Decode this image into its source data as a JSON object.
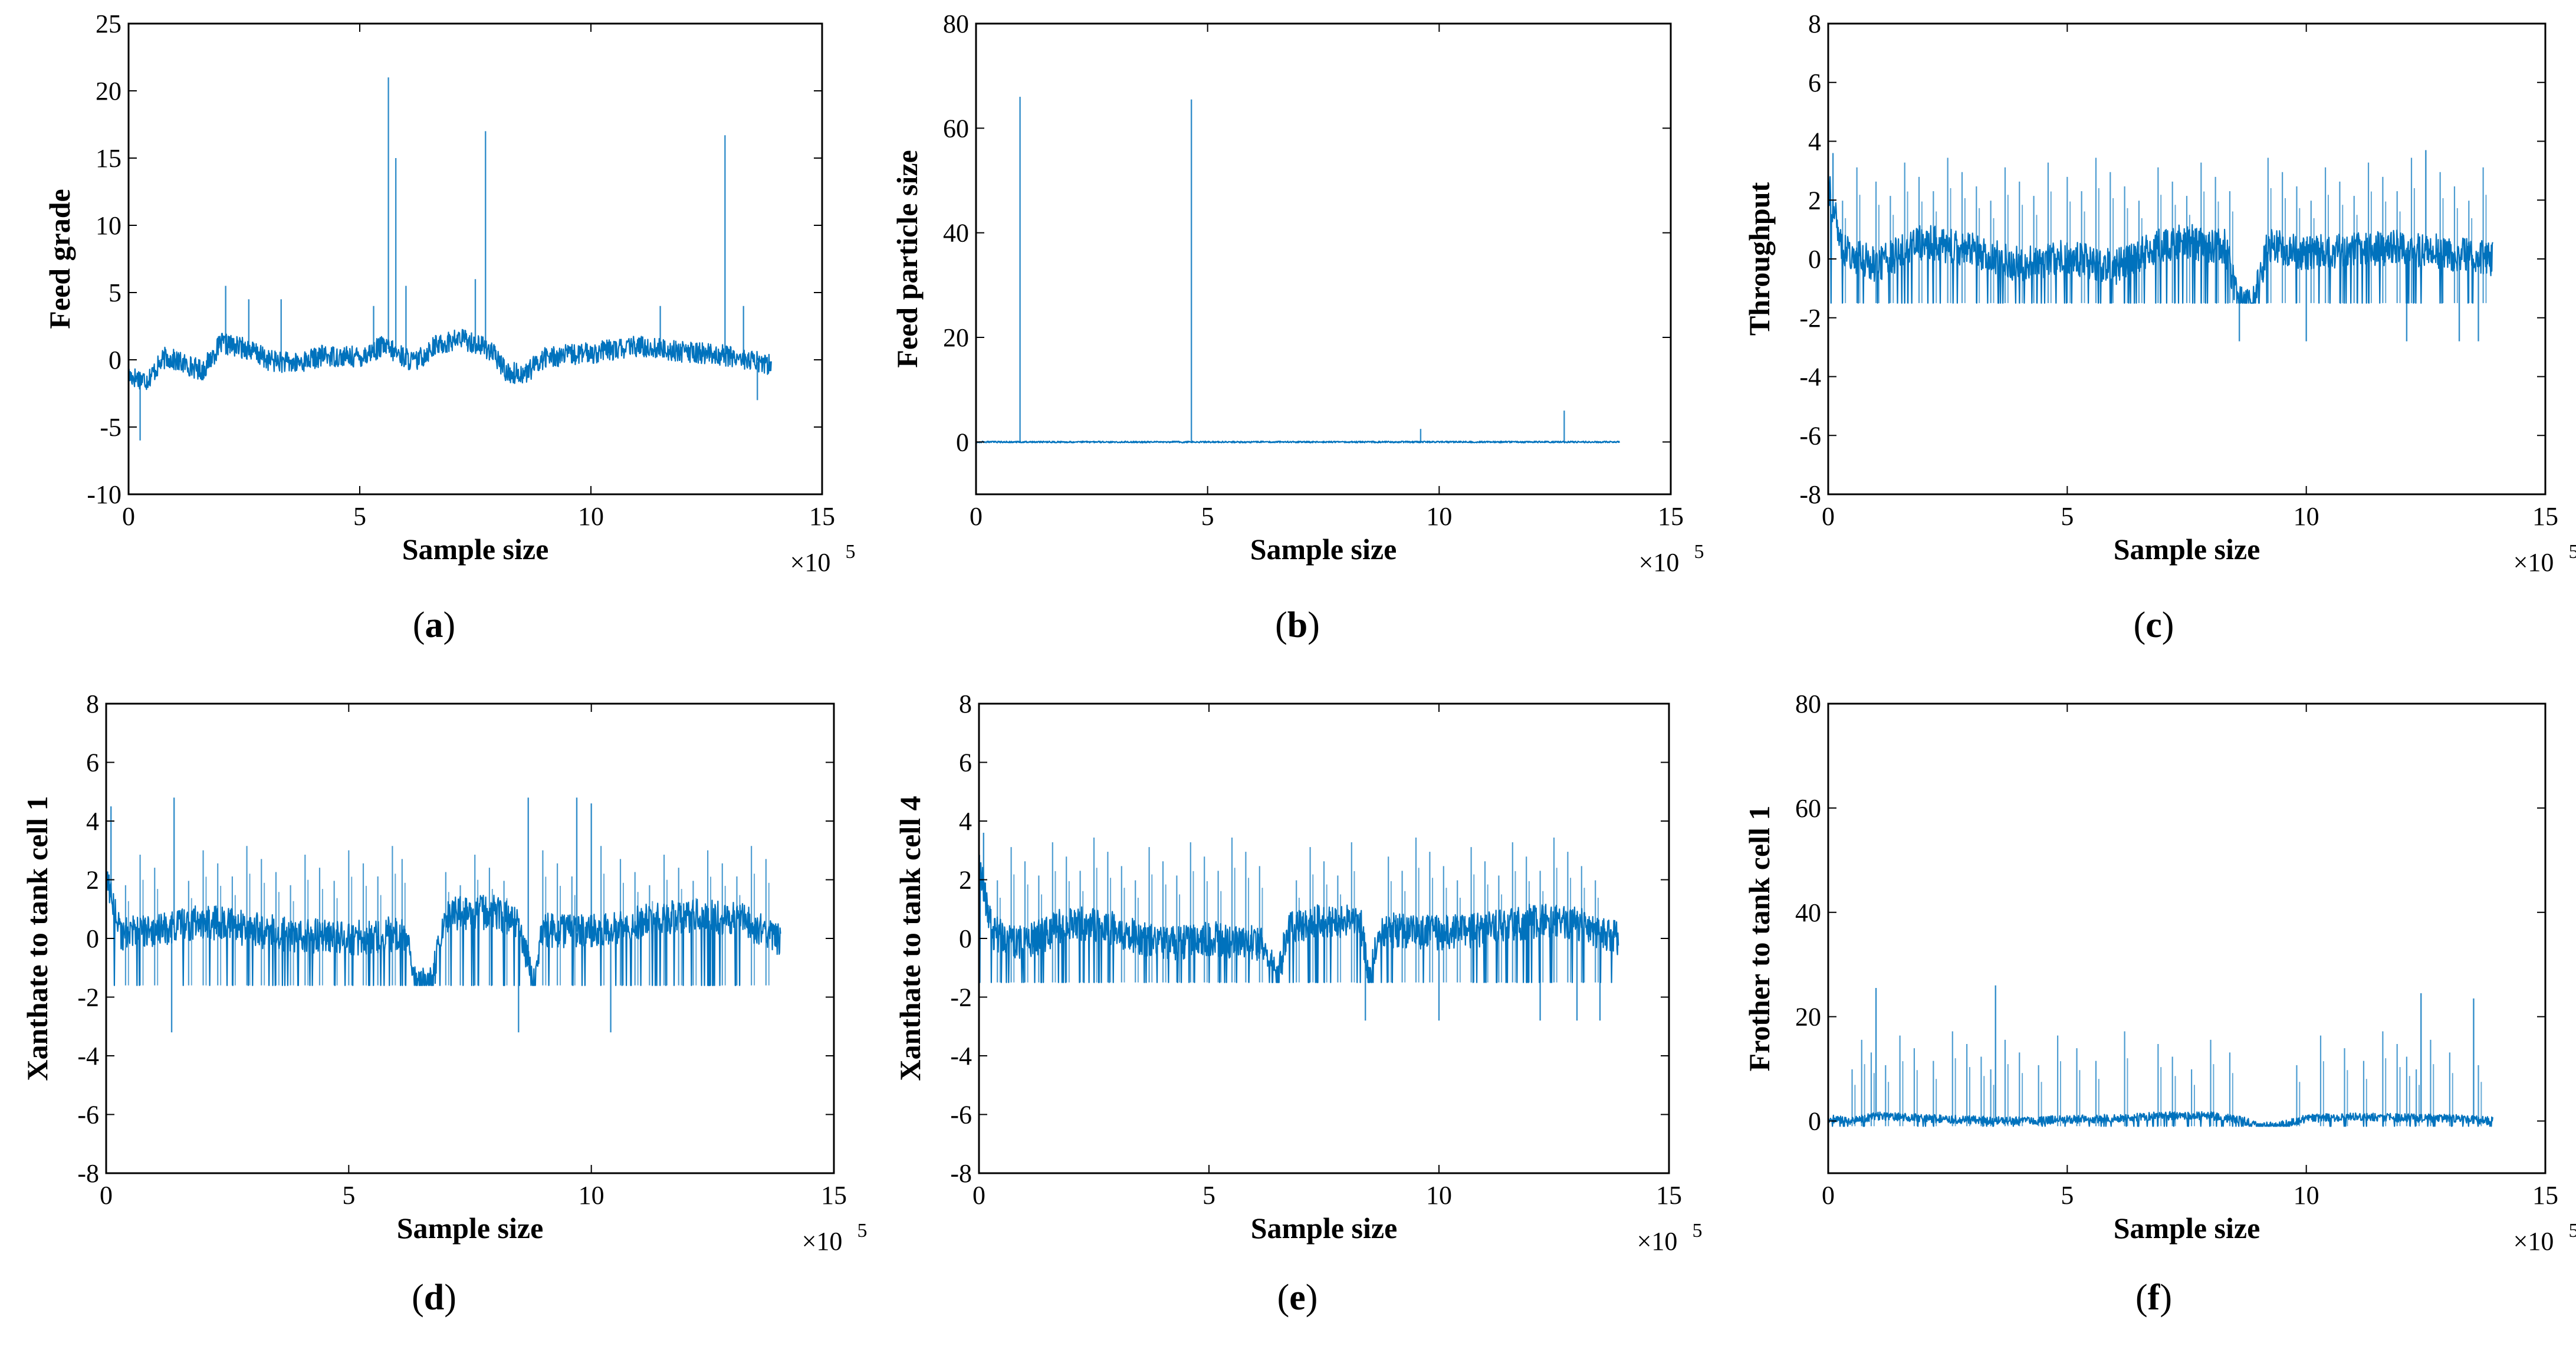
{
  "chart_data": [
    {
      "id": "a",
      "type": "line",
      "panel_label": "a",
      "xlabel": "Sample size",
      "ylabel": "Feed grade",
      "x_multiplier": "×10",
      "x_multiplier_exp": "5",
      "xlim": [
        0,
        15
      ],
      "ylim": [
        -10,
        25
      ],
      "xticks": [
        0,
        5,
        10,
        15
      ],
      "yticks": [
        -10,
        -5,
        0,
        5,
        10,
        15,
        20,
        25
      ],
      "color": "#0072BD",
      "series": [
        {
          "name": "Feed grade",
          "x_range": [
            0,
            13.9
          ],
          "baseline": [
            [
              0,
              -1.2
            ],
            [
              0.4,
              -1.5
            ],
            [
              0.8,
              0.2
            ],
            [
              1.6,
              -0.8
            ],
            [
              2.0,
              1.2
            ],
            [
              2.6,
              0.8
            ],
            [
              3.0,
              0.0
            ],
            [
              3.6,
              -0.3
            ],
            [
              4.2,
              0.3
            ],
            [
              5.0,
              0.2
            ],
            [
              5.5,
              1.0
            ],
            [
              6.2,
              -0.2
            ],
            [
              6.6,
              1.0
            ],
            [
              7.2,
              1.6
            ],
            [
              7.8,
              0.8
            ],
            [
              8.2,
              -1.0
            ],
            [
              8.6,
              -1.0
            ],
            [
              9.0,
              0.2
            ],
            [
              10.0,
              0.5
            ],
            [
              11.0,
              1.0
            ],
            [
              12.0,
              0.6
            ],
            [
              13.0,
              0.3
            ],
            [
              13.9,
              -0.4
            ]
          ],
          "noise": 0.8,
          "spikes": [
            [
              0.25,
              -6
            ],
            [
              2.1,
              5.5
            ],
            [
              2.6,
              4.5
            ],
            [
              3.3,
              4.5
            ],
            [
              5.3,
              4.0
            ],
            [
              5.62,
              21
            ],
            [
              5.78,
              15
            ],
            [
              6.0,
              5.5
            ],
            [
              7.5,
              6.0
            ],
            [
              7.72,
              17
            ],
            [
              11.5,
              4.0
            ],
            [
              12.9,
              16.7
            ],
            [
              13.3,
              4.0
            ],
            [
              13.6,
              -3.0
            ]
          ],
          "cluster_spikes": []
        }
      ]
    },
    {
      "id": "b",
      "type": "line",
      "panel_label": "b",
      "xlabel": "Sample size",
      "ylabel": "Feed particle size",
      "x_multiplier": "×10",
      "x_multiplier_exp": "5",
      "xlim": [
        0,
        15
      ],
      "ylim": [
        -10,
        80
      ],
      "xticks": [
        0,
        5,
        10,
        15
      ],
      "yticks": [
        0,
        20,
        40,
        60,
        80
      ],
      "color": "#0072BD",
      "series": [
        {
          "name": "Feed particle size",
          "x_range": [
            0,
            13.9
          ],
          "baseline": [
            [
              0,
              0
            ],
            [
              13.9,
              0
            ]
          ],
          "noise": 0.15,
          "spikes": [
            [
              0.95,
              66
            ],
            [
              4.65,
              65.5
            ],
            [
              9.6,
              2.5
            ],
            [
              12.7,
              6.0
            ]
          ],
          "cluster_spikes": []
        }
      ]
    },
    {
      "id": "c",
      "type": "line",
      "panel_label": "c",
      "xlabel": "Sample size",
      "ylabel": "Throughput",
      "x_multiplier": "×10",
      "x_multiplier_exp": "5",
      "xlim": [
        0,
        15
      ],
      "ylim": [
        -8,
        8
      ],
      "xticks": [
        0,
        5,
        10,
        15
      ],
      "yticks": [
        -8,
        -6,
        -4,
        -2,
        0,
        2,
        4,
        6,
        8
      ],
      "color": "#0072BD",
      "series": [
        {
          "name": "Throughput",
          "x_range": [
            0,
            13.9
          ],
          "baseline": [
            [
              0,
              2.5
            ],
            [
              0.3,
              0.3
            ],
            [
              1.0,
              -0.2
            ],
            [
              2.0,
              0.6
            ],
            [
              3.0,
              0.3
            ],
            [
              4.0,
              -0.2
            ],
            [
              5.0,
              0.1
            ],
            [
              6.0,
              -0.3
            ],
            [
              6.8,
              0.4
            ],
            [
              7.5,
              0.6
            ],
            [
              8.3,
              0.4
            ],
            [
              8.6,
              -1.5
            ],
            [
              8.9,
              -1.5
            ],
            [
              9.2,
              0.5
            ],
            [
              10.0,
              0.2
            ],
            [
              11.0,
              0.3
            ],
            [
              12.0,
              0.4
            ],
            [
              13.0,
              0.2
            ],
            [
              13.9,
              0.0
            ]
          ],
          "noise": 0.6,
          "floor": -1.5,
          "spikes": [
            [
              0.1,
              3.6
            ],
            [
              8.6,
              -2.8
            ],
            [
              10.0,
              -2.8
            ],
            [
              12.1,
              -2.8
            ],
            [
              13.2,
              -2.8
            ],
            [
              13.6,
              -2.8
            ],
            [
              12.5,
              3.7
            ]
          ],
          "cluster_spikes": [
            0.3,
            0.6,
            1.0,
            1.3,
            1.6,
            1.9,
            2.2,
            2.5,
            2.8,
            3.1,
            3.4,
            3.7,
            4.0,
            4.3,
            4.6,
            5.0,
            5.3,
            5.6,
            5.9,
            6.2,
            6.5,
            6.9,
            7.2,
            7.5,
            7.8,
            8.1,
            8.4,
            9.2,
            9.5,
            9.8,
            10.1,
            10.4,
            10.7,
            11.0,
            11.3,
            11.6,
            11.9,
            12.2,
            12.8,
            13.1,
            13.4,
            13.7
          ],
          "cluster_high": 3.6
        }
      ]
    },
    {
      "id": "d",
      "type": "line",
      "panel_label": "d",
      "xlabel": "Sample size",
      "ylabel": "Xanthate to tank cell 1",
      "x_multiplier": "×10",
      "x_multiplier_exp": "5",
      "xlim": [
        0,
        15
      ],
      "ylim": [
        -8,
        8
      ],
      "xticks": [
        0,
        5,
        10,
        15
      ],
      "yticks": [
        -8,
        -6,
        -4,
        -2,
        0,
        2,
        4,
        6,
        8
      ],
      "color": "#0072BD",
      "series": [
        {
          "name": "Xanthate to tank cell 1",
          "x_range": [
            0,
            13.9
          ],
          "baseline": [
            [
              0,
              2.0
            ],
            [
              0.3,
              0.2
            ],
            [
              1.0,
              0.2
            ],
            [
              2.0,
              0.6
            ],
            [
              3.0,
              0.3
            ],
            [
              4.0,
              0.1
            ],
            [
              5.0,
              0.0
            ],
            [
              6.2,
              0.2
            ],
            [
              6.4,
              -1.6
            ],
            [
              6.7,
              -1.6
            ],
            [
              7.0,
              0.8
            ],
            [
              8.0,
              0.9
            ],
            [
              8.5,
              0.5
            ],
            [
              8.8,
              -1.6
            ],
            [
              9.0,
              0.3
            ],
            [
              10.0,
              0.2
            ],
            [
              11.0,
              0.6
            ],
            [
              12.0,
              0.8
            ],
            [
              13.0,
              0.7
            ],
            [
              13.9,
              0.0
            ]
          ],
          "noise": 0.6,
          "floor": -1.6,
          "spikes": [
            [
              0.1,
              4.5
            ],
            [
              1.35,
              -3.2
            ],
            [
              8.5,
              -3.2
            ],
            [
              10.4,
              -3.2
            ],
            [
              1.4,
              4.8
            ],
            [
              8.7,
              4.8
            ],
            [
              9.7,
              4.8
            ],
            [
              10.0,
              4.6
            ]
          ],
          "cluster_spikes": [
            0.4,
            0.7,
            1.0,
            1.7,
            2.0,
            2.3,
            2.6,
            2.9,
            3.2,
            3.5,
            3.8,
            4.1,
            4.4,
            4.7,
            5.0,
            5.3,
            5.6,
            5.9,
            6.1,
            7.0,
            7.3,
            7.6,
            7.9,
            8.2,
            9.0,
            9.3,
            9.6,
            10.2,
            10.6,
            10.9,
            11.2,
            11.5,
            11.8,
            12.1,
            12.4,
            12.7,
            13.0,
            13.3,
            13.6
          ],
          "cluster_high": 3.3
        }
      ]
    },
    {
      "id": "e",
      "type": "line",
      "panel_label": "e",
      "xlabel": "Sample size",
      "ylabel": "Xanthate to tank cell 4",
      "x_multiplier": "×10",
      "x_multiplier_exp": "5",
      "xlim": [
        0,
        15
      ],
      "ylim": [
        -8,
        8
      ],
      "xticks": [
        0,
        5,
        10,
        15
      ],
      "yticks": [
        -8,
        -6,
        -4,
        -2,
        0,
        2,
        4,
        6,
        8
      ],
      "color": "#0072BD",
      "series": [
        {
          "name": "Xanthate to tank cell 4",
          "x_range": [
            0,
            13.9
          ],
          "baseline": [
            [
              0,
              2.5
            ],
            [
              0.3,
              0.2
            ],
            [
              1.0,
              -0.2
            ],
            [
              2.0,
              0.6
            ],
            [
              3.0,
              0.3
            ],
            [
              4.0,
              -0.2
            ],
            [
              5.0,
              0.0
            ],
            [
              6.2,
              -0.2
            ],
            [
              6.5,
              -1.5
            ],
            [
              6.7,
              0.4
            ],
            [
              7.5,
              0.6
            ],
            [
              8.3,
              0.5
            ],
            [
              8.5,
              -1.5
            ],
            [
              8.7,
              0.3
            ],
            [
              10.0,
              0.2
            ],
            [
              11.0,
              0.3
            ],
            [
              12.0,
              0.6
            ],
            [
              13.0,
              0.5
            ],
            [
              13.9,
              0.0
            ]
          ],
          "noise": 0.6,
          "floor": -1.5,
          "spikes": [
            [
              0.1,
              3.6
            ],
            [
              8.4,
              -2.8
            ],
            [
              10.0,
              -2.8
            ],
            [
              12.2,
              -2.8
            ],
            [
              13.0,
              -2.8
            ],
            [
              13.5,
              -2.8
            ]
          ],
          "cluster_spikes": [
            0.4,
            0.7,
            1.0,
            1.3,
            1.6,
            1.9,
            2.2,
            2.5,
            2.8,
            3.1,
            3.4,
            3.7,
            4.0,
            4.3,
            4.6,
            4.9,
            5.2,
            5.5,
            5.8,
            6.1,
            6.9,
            7.2,
            7.5,
            7.8,
            8.1,
            8.9,
            9.2,
            9.5,
            9.8,
            10.1,
            10.4,
            10.7,
            11.0,
            11.3,
            11.6,
            11.9,
            12.2,
            12.5,
            12.8,
            13.1,
            13.4
          ],
          "cluster_high": 3.6
        }
      ]
    },
    {
      "id": "f",
      "type": "line",
      "panel_label": "f",
      "xlabel": "Sample size",
      "ylabel": "Frother to tank cell 1",
      "x_multiplier": "×10",
      "x_multiplier_exp": "5",
      "xlim": [
        0,
        15
      ],
      "ylim": [
        -10,
        80
      ],
      "xticks": [
        0,
        5,
        10,
        15
      ],
      "yticks": [
        0,
        20,
        40,
        60,
        80
      ],
      "color": "#0072BD",
      "series": [
        {
          "name": "Frother to tank cell 1",
          "x_range": [
            0,
            13.9
          ],
          "baseline": [
            [
              0,
              0.5
            ],
            [
              0.5,
              0.0
            ],
            [
              1.0,
              1.0
            ],
            [
              2.0,
              0.5
            ],
            [
              3.0,
              0.2
            ],
            [
              4.0,
              0.0
            ],
            [
              5.0,
              0.3
            ],
            [
              6.0,
              0.5
            ],
            [
              7.0,
              1.0
            ],
            [
              8.0,
              1.0
            ],
            [
              8.6,
              0.3
            ],
            [
              9.0,
              -1.0
            ],
            [
              9.4,
              -1.0
            ],
            [
              10.0,
              0.5
            ],
            [
              11.0,
              0.8
            ],
            [
              12.0,
              0.6
            ],
            [
              13.0,
              0.5
            ],
            [
              13.9,
              0.0
            ]
          ],
          "noise": 0.8,
          "floor": -1.0,
          "spikes": [
            [
              3.5,
              26
            ],
            [
              1.0,
              25.5
            ],
            [
              12.4,
              24.5
            ],
            [
              13.5,
              23.5
            ]
          ],
          "cluster_spikes": [
            0.5,
            0.7,
            0.9,
            1.2,
            1.5,
            1.8,
            2.2,
            2.6,
            2.9,
            3.2,
            3.4,
            3.7,
            4.0,
            4.4,
            4.8,
            5.2,
            5.6,
            6.2,
            6.9,
            7.2,
            7.6,
            8.0,
            8.4,
            9.8,
            10.3,
            10.8,
            11.2,
            11.6,
            11.9,
            12.1,
            12.3,
            12.6,
            13.0,
            13.6
          ],
          "cluster_high": 18
        }
      ]
    }
  ]
}
